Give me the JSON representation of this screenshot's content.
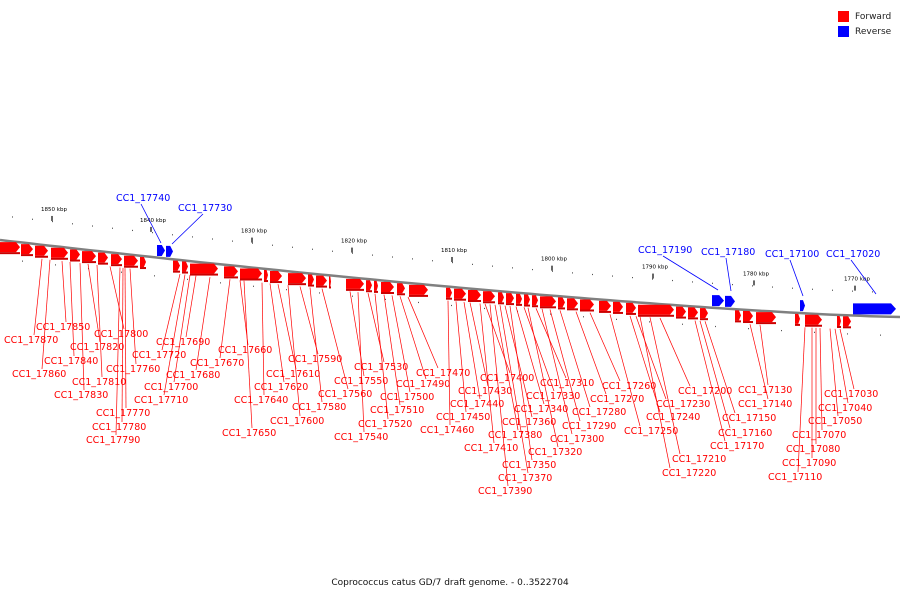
{
  "legend": [
    {
      "label": "Forward",
      "color": "#ff0000"
    },
    {
      "label": "Reverse",
      "color": "#0000ff"
    }
  ],
  "caption": "Coprococcus catus GD/7 draft genome. - 0..3522704",
  "colors": {
    "forward": "#ff0000",
    "reverse": "#0000ff",
    "backbone": "#808080"
  },
  "scale_labels": [
    "1850 kbp",
    "1840 kbp",
    "1830 kbp",
    "1820 kbp",
    "1810 kbp",
    "1800 kbp",
    "1790 kbp",
    "1780 kbp",
    "1770 kbp"
  ],
  "reverse_labels": [
    "CC1_17740",
    "CC1_17730",
    "CC1_17190",
    "CC1_17180",
    "CC1_17100",
    "CC1_17020"
  ],
  "forward_labels": [
    "CC1_17870",
    "CC1_17850",
    "CC1_17860",
    "CC1_17840",
    "CC1_17830",
    "CC1_17820",
    "CC1_17810",
    "CC1_17800",
    "CC1_17790",
    "CC1_17780",
    "CC1_17770",
    "CC1_17760",
    "CC1_17720",
    "CC1_17710",
    "CC1_17700",
    "CC1_17690",
    "CC1_17680",
    "CC1_17670",
    "CC1_17660",
    "CC1_17650",
    "CC1_17640",
    "CC1_17620",
    "CC1_17610",
    "CC1_17600",
    "CC1_17590",
    "CC1_17580",
    "CC1_17560",
    "CC1_17550",
    "CC1_17540",
    "CC1_17530",
    "CC1_17520",
    "CC1_17510",
    "CC1_17500",
    "CC1_17490",
    "CC1_17470",
    "CC1_17460",
    "CC1_17450",
    "CC1_17440",
    "CC1_17430",
    "CC1_17410",
    "CC1_17400",
    "CC1_17390",
    "CC1_17380",
    "CC1_17370",
    "CC1_17360",
    "CC1_17350",
    "CC1_17340",
    "CC1_17330",
    "CC1_17320",
    "CC1_17310",
    "CC1_17300",
    "CC1_17290",
    "CC1_17280",
    "CC1_17270",
    "CC1_17260",
    "CC1_17250",
    "CC1_17240",
    "CC1_17230",
    "CC1_17220",
    "CC1_17210",
    "CC1_17200",
    "CC1_17170",
    "CC1_17160",
    "CC1_17150",
    "CC1_17140",
    "CC1_17130",
    "CC1_17110",
    "CC1_17090",
    "CC1_17080",
    "CC1_17070",
    "CC1_17050",
    "CC1_17040",
    "CC1_17030"
  ]
}
